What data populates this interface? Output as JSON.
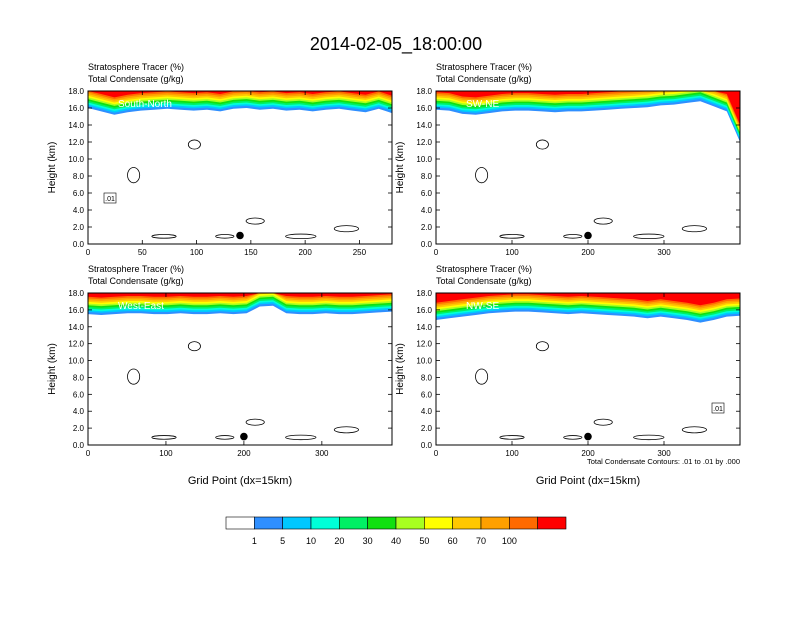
{
  "chart_data": {
    "type": "heatmap",
    "title": "2014-02-05_18:00:00",
    "footnote": "Total Condensate Contours: .01 to .01 by .000",
    "colorbar": {
      "colors": [
        "#ffffff",
        "#2f8fff",
        "#00c8ff",
        "#00ffd8",
        "#00f064",
        "#10e010",
        "#a8ff20",
        "#ffff00",
        "#ffc800",
        "#ffa000",
        "#ff6a00",
        "#ff0000"
      ],
      "labels": [
        "1",
        "5",
        "10",
        "20",
        "30",
        "40",
        "50",
        "60",
        "70",
        "100"
      ]
    },
    "panels": [
      {
        "name": "South-North",
        "subtitle1": "Stratosphere Tracer   (%)",
        "subtitle2": "Total Condensate   (g/kg)",
        "ylabel": "Height (km)",
        "xlabel": "",
        "xlim": [
          0,
          280
        ],
        "xticks": [
          0,
          50,
          100,
          150,
          200,
          250
        ],
        "ylim": [
          0,
          18
        ],
        "yticks": [
          "0.0",
          "2.0",
          "4.0",
          "6.0",
          "8.0",
          "10.0",
          "12.0",
          "14.0",
          "16.0",
          "18.0"
        ],
        "tropopause_km": [
          16.0,
          15.6,
          15.2,
          15.5,
          15.7,
          15.8,
          15.9,
          15.8,
          15.7,
          15.8,
          15.6,
          15.9,
          16.0,
          15.8,
          15.9,
          15.7,
          15.8,
          15.6,
          15.8,
          15.9,
          15.7,
          15.5,
          15.9,
          15.4
        ],
        "marker": {
          "x": 140,
          "y": 1.0
        },
        "contour_label": ".01"
      },
      {
        "name": "SW-NE",
        "subtitle1": "Stratosphere Tracer   (%)",
        "subtitle2": "Total Condensate   (g/kg)",
        "ylabel": "Height (km)",
        "xlabel": "",
        "xlim": [
          0,
          400
        ],
        "xticks": [
          0,
          100,
          200,
          300
        ],
        "ylim": [
          0,
          18
        ],
        "yticks": [
          "0.0",
          "2.0",
          "4.0",
          "6.0",
          "8.0",
          "10.0",
          "12.0",
          "14.0",
          "16.0",
          "18.0"
        ],
        "tropopause_km": [
          15.8,
          15.7,
          15.3,
          15.2,
          15.4,
          15.6,
          15.7,
          15.7,
          15.6,
          15.5,
          15.6,
          15.6,
          15.7,
          15.8,
          15.9,
          16.0,
          16.1,
          16.3,
          16.4,
          16.6,
          16.8,
          16.2,
          15.6,
          12.0
        ],
        "marker": {
          "x": 200,
          "y": 1.0
        },
        "contour_label": ""
      },
      {
        "name": "West-East",
        "subtitle1": "Stratosphere Tracer   (%)",
        "subtitle2": "Total Condensate   (g/kg)",
        "ylabel": "Height (km)",
        "xlabel": "Grid Point (dx=15km)",
        "xlim": [
          0,
          390
        ],
        "xticks": [
          0,
          100,
          200,
          300
        ],
        "ylim": [
          0,
          18
        ],
        "yticks": [
          "0.0",
          "2.0",
          "4.0",
          "6.0",
          "8.0",
          "10.0",
          "12.0",
          "14.0",
          "16.0",
          "18.0"
        ],
        "tropopause_km": [
          15.5,
          15.4,
          15.5,
          15.6,
          15.6,
          15.5,
          15.5,
          15.6,
          15.5,
          15.5,
          15.6,
          15.5,
          15.6,
          16.4,
          16.5,
          15.6,
          15.5,
          15.5,
          15.6,
          15.5,
          15.5,
          15.6,
          15.7,
          15.8
        ],
        "marker": {
          "x": 200,
          "y": 1.0
        },
        "contour_label": ""
      },
      {
        "name": "NW-SE",
        "subtitle1": "Stratosphere Tracer   (%)",
        "subtitle2": "Total Condensate   (g/kg)",
        "ylabel": "Height (km)",
        "xlabel": "Grid Point (dx=15km)",
        "xlim": [
          0,
          400
        ],
        "xticks": [
          0,
          100,
          200,
          300
        ],
        "ylim": [
          0,
          18
        ],
        "yticks": [
          "0.0",
          "2.0",
          "4.0",
          "6.0",
          "8.0",
          "10.0",
          "12.0",
          "14.0",
          "16.0",
          "18.0"
        ],
        "tropopause_km": [
          14.8,
          15.0,
          15.2,
          15.4,
          15.6,
          15.7,
          15.8,
          15.8,
          15.7,
          15.6,
          15.5,
          15.6,
          15.5,
          15.4,
          15.3,
          15.2,
          15.0,
          15.2,
          15.0,
          14.8,
          14.5,
          14.8,
          15.2,
          15.3
        ],
        "marker": {
          "x": 200,
          "y": 1.0
        },
        "contour_label": ".01"
      }
    ]
  }
}
